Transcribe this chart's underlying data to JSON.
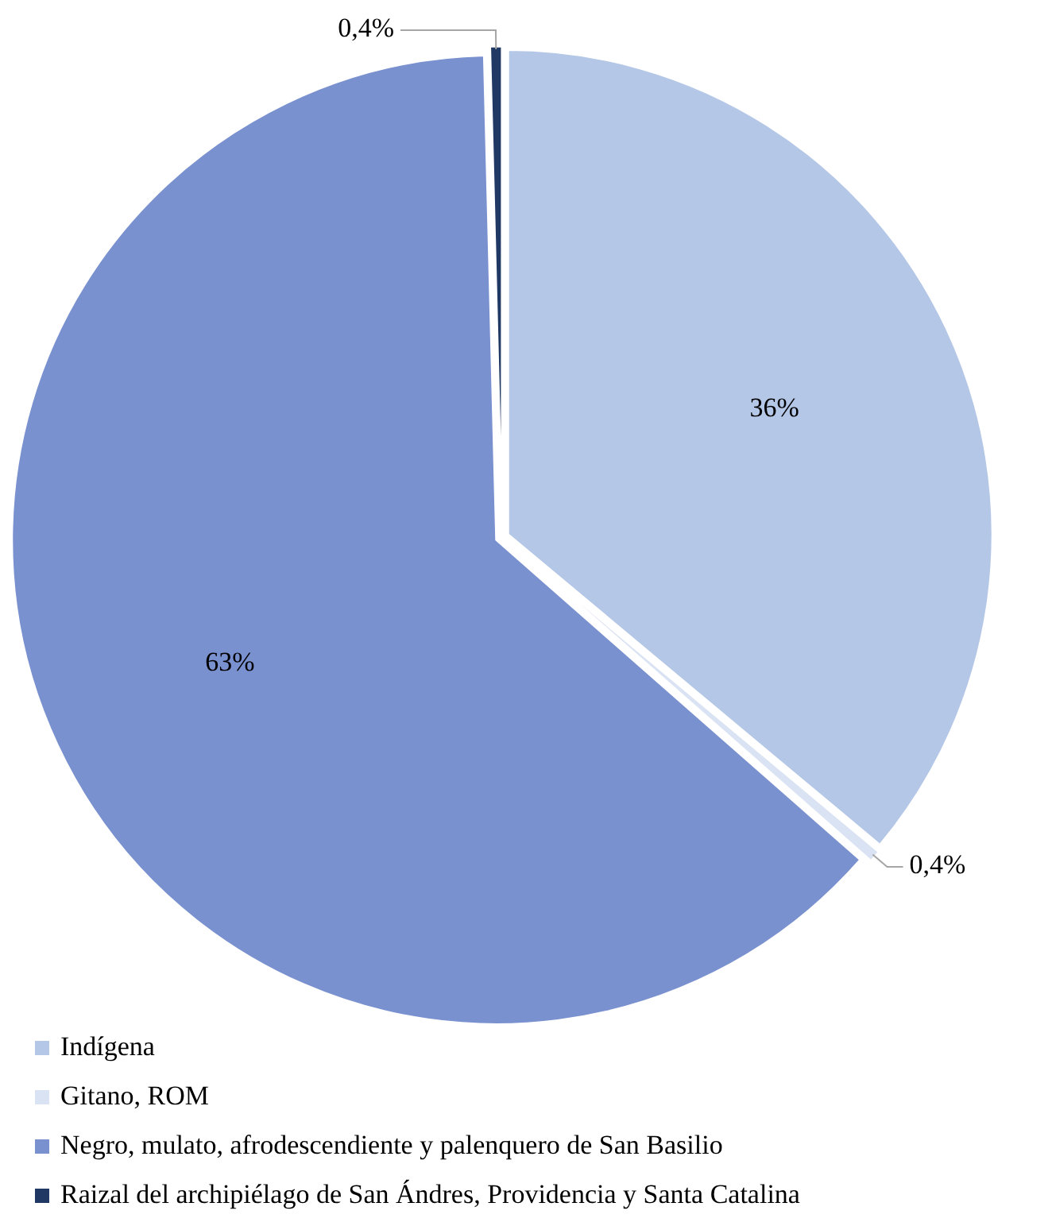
{
  "chart_data": {
    "type": "pie",
    "categories": [
      "Indígena",
      "Gitano, ROM",
      "Negro, mulato, afrodescendiente y palenquero de San Basilio",
      "Raizal del archipiélago de San Ándres, Providencia y Santa Catalina"
    ],
    "values": [
      36,
      0.4,
      63,
      0.4
    ],
    "colors": [
      "#b4c7e7",
      "#dae3f3",
      "#7a91d0",
      "#203864"
    ],
    "value_labels": [
      "36%",
      "0,4%",
      "63%",
      "0,4%"
    ],
    "legend": "bottom"
  }
}
